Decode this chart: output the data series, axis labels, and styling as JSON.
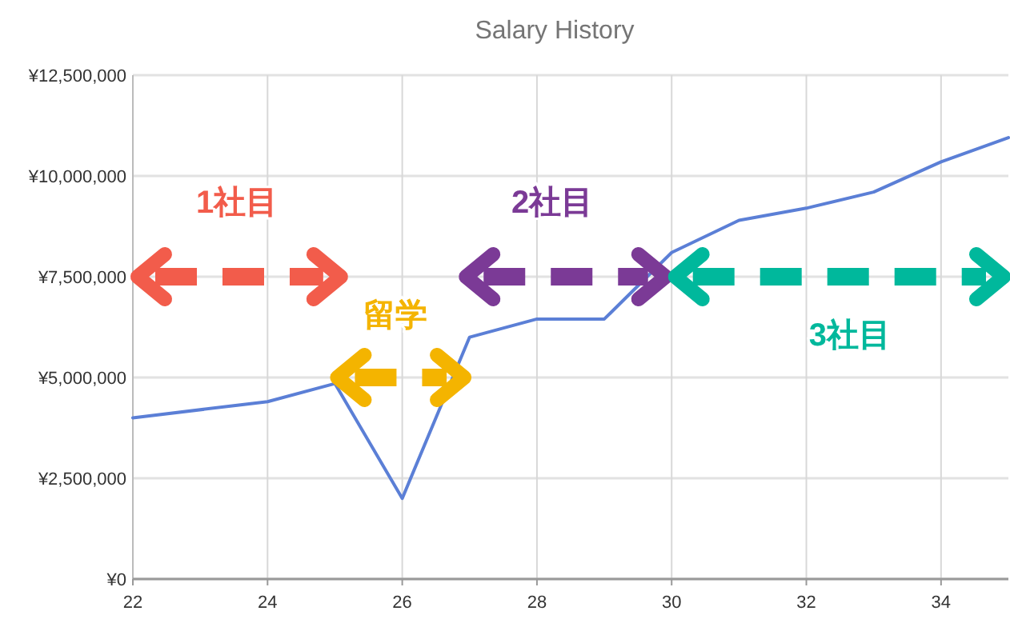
{
  "chart_data": {
    "type": "line",
    "title": "Salary History",
    "x": [
      22,
      24,
      25,
      26,
      27,
      28,
      29,
      30,
      31,
      32,
      33,
      34,
      35
    ],
    "series": [
      {
        "color": "#5b7fd6",
        "values": [
          4000000,
          4400000,
          4850000,
          2000000,
          6000000,
          6450000,
          6450000,
          8100000,
          8900000,
          9200000,
          9600000,
          10350000,
          10950000
        ]
      }
    ],
    "xlim": [
      22,
      35
    ],
    "xticks": [
      22,
      24,
      26,
      28,
      30,
      32,
      34
    ],
    "ylim": [
      0,
      12500000
    ],
    "yticks": [
      {
        "value": 0,
        "label": "¥0"
      },
      {
        "value": 2500000,
        "label": "¥2,500,000"
      },
      {
        "value": 5000000,
        "label": "¥5,000,000"
      },
      {
        "value": 7500000,
        "label": "¥7,500,000"
      },
      {
        "value": 10000000,
        "label": "¥10,000,000"
      },
      {
        "value": 12500000,
        "label": "¥12,500,000"
      }
    ],
    "grid": true,
    "marker": "none",
    "line_style": "solid",
    "annotations": [
      "1社目",
      "留学",
      "2社目",
      "3社目"
    ]
  }
}
